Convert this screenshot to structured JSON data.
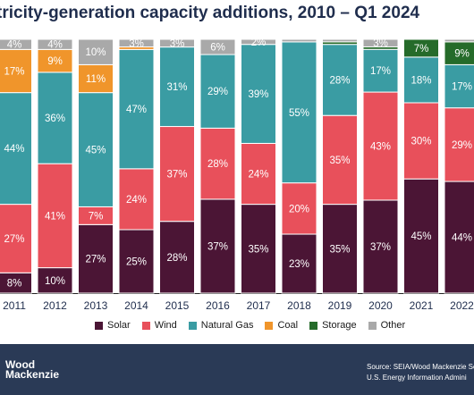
{
  "chart_data": {
    "type": "bar",
    "stacked": true,
    "normalized": true,
    "title": "tricity-generation capacity additions, 2010 – Q1 2024",
    "categories": [
      "2011",
      "2012",
      "2013",
      "2014",
      "2015",
      "2016",
      "2017",
      "2018",
      "2019",
      "2020",
      "2021",
      "2022"
    ],
    "series": [
      {
        "name": "Solar",
        "color": "#4b1535",
        "values": [
          8,
          10,
          27,
          25,
          28,
          37,
          35,
          23,
          35,
          37,
          45,
          44
        ],
        "labels": [
          "8%",
          "10%",
          "27%",
          "25%",
          "28%",
          "37%",
          "35%",
          "23%",
          "35%",
          "37%",
          "45%",
          "44%"
        ]
      },
      {
        "name": "Wind",
        "color": "#e8505b",
        "values": [
          27,
          41,
          7,
          24,
          37,
          28,
          24,
          20,
          35,
          43,
          30,
          29
        ],
        "labels": [
          "27%",
          "41%",
          "7%",
          "24%",
          "37%",
          "28%",
          "24%",
          "20%",
          "35%",
          "43%",
          "30%",
          "29%"
        ]
      },
      {
        "name": "Natural Gas",
        "color": "#3a9ca3",
        "values": [
          44,
          36,
          45,
          47,
          31,
          29,
          39,
          55,
          28,
          17,
          18,
          17
        ],
        "labels": [
          "44%",
          "36%",
          "45%",
          "47%",
          "31%",
          "29%",
          "39%",
          "55%",
          "28%",
          "17%",
          "18%",
          "17%"
        ]
      },
      {
        "name": "Coal",
        "color": "#f0952b",
        "values": [
          17,
          9,
          11,
          1,
          0,
          0,
          0,
          0,
          0,
          0,
          0,
          0
        ],
        "labels": [
          "17%",
          "9%",
          "11%",
          "",
          "",
          "",
          "",
          "",
          "",
          "",
          "",
          ""
        ]
      },
      {
        "name": "Storage",
        "color": "#256b2a",
        "values": [
          0,
          0,
          0,
          0,
          0,
          0,
          0,
          0,
          1,
          1,
          7,
          9
        ],
        "labels": [
          "",
          "",
          "",
          "",
          "",
          "",
          "",
          "",
          "",
          "",
          "7%",
          "9%"
        ]
      },
      {
        "name": "Other",
        "color": "#a9a9a9",
        "values": [
          4,
          4,
          10,
          3,
          3,
          6,
          2,
          1,
          1,
          3,
          0,
          1
        ],
        "labels": [
          "4%",
          "4%",
          "10%",
          "3%",
          "3%",
          "6%",
          "2%",
          "",
          "",
          "3%",
          "",
          ""
        ]
      }
    ],
    "ylim": [
      0,
      100
    ],
    "grid": false,
    "legend_position": "bottom"
  },
  "footer": {
    "logo_line1": "Wood",
    "logo_line2": "Mackenzie",
    "source_line1": "Source: SEIA/Wood Mackenzie So",
    "source_line2": "U.S. Energy Information Admini"
  }
}
